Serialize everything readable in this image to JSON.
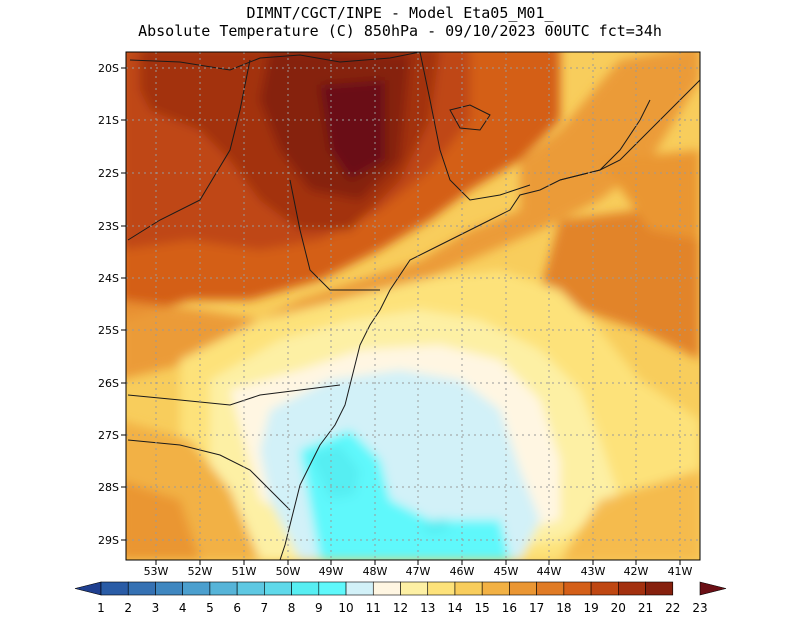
{
  "header": {
    "line1": "DIMNT/CGCT/INPE -  Model Eta05_M01_",
    "line2": "Absolute Temperature (C) 850hPa -  09/10/2023 00UTC fct=34h"
  },
  "map": {
    "variable": "Absolute Temperature",
    "units": "C",
    "level": "850hPa",
    "lat_ticks": [
      "20S",
      "21S",
      "22S",
      "23S",
      "24S",
      "25S",
      "26S",
      "27S",
      "28S",
      "29S"
    ],
    "lon_ticks": [
      "53W",
      "52W",
      "51W",
      "50W",
      "49W",
      "48W",
      "47W",
      "46W",
      "45W",
      "44W",
      "43W",
      "42W",
      "41W"
    ],
    "lat_range": [
      -29.4,
      -19.9
    ],
    "lon_range": [
      -53.7,
      -40.4
    ]
  },
  "colorbar": {
    "labels": [
      "1",
      "2",
      "3",
      "4",
      "5",
      "6",
      "7",
      "8",
      "9",
      "10",
      "11",
      "12",
      "13",
      "14",
      "15",
      "16",
      "17",
      "18",
      "19",
      "20",
      "21",
      "22",
      "23"
    ],
    "colors": [
      "#1f3f8f",
      "#2a5ca6",
      "#3571b3",
      "#3f87c0",
      "#4b9fce",
      "#56b4d8",
      "#5ec8e2",
      "#5fd9ea",
      "#57eef2",
      "#5ff8fb",
      "#d2f1f8",
      "#fff6e2",
      "#fdf0a4",
      "#fde27a",
      "#f8cd5c",
      "#f2b144",
      "#ea9633",
      "#e07b25",
      "#d45f18",
      "#bf4712",
      "#a3300f",
      "#86200d",
      "#6b0f15"
    ]
  }
}
